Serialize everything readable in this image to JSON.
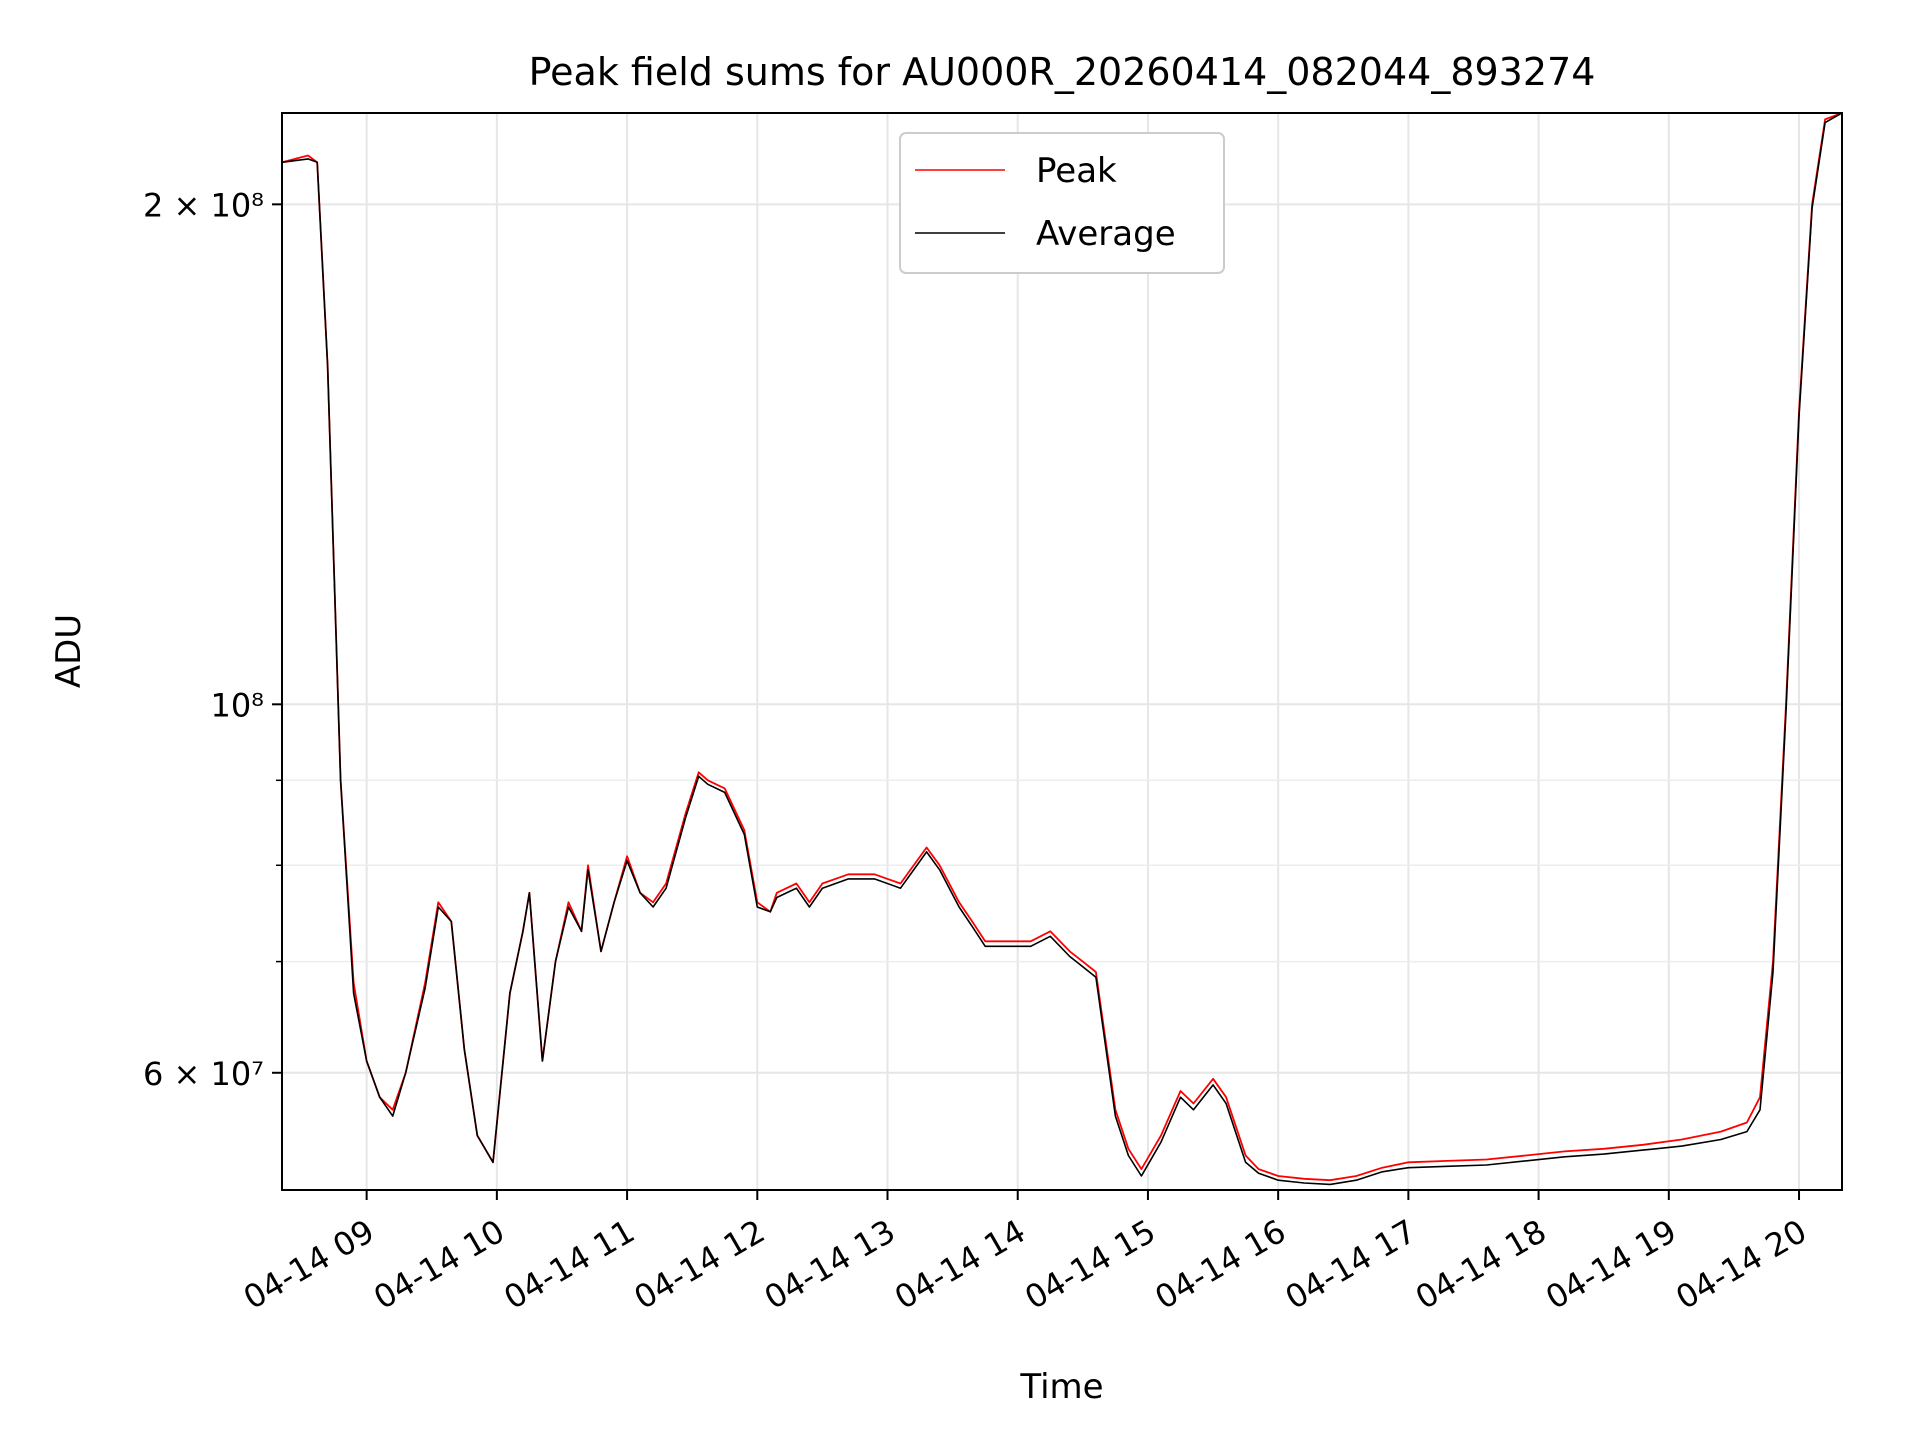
{
  "chart_data": {
    "type": "line",
    "title": "Peak field sums for AU000R_20260414_082044_893274",
    "xlabel": "Time",
    "ylabel": "ADU",
    "x_unit": "hour of 2026-04-14",
    "xlim": [
      8.35,
      20.33
    ],
    "ylim": [
      51000000,
      227000000
    ],
    "yscale": "log",
    "grid": true,
    "legend_position": "top-center",
    "x_tick_values": [
      9,
      10,
      11,
      12,
      13,
      14,
      15,
      16,
      17,
      18,
      19,
      20
    ],
    "x_tick_labels": [
      "04-14 09",
      "04-14 10",
      "04-14 11",
      "04-14 12",
      "04-14 13",
      "04-14 14",
      "04-14 15",
      "04-14 16",
      "04-14 17",
      "04-14 18",
      "04-14 19",
      "04-14 20"
    ],
    "y_major_ticks": [
      {
        "value": 60000000,
        "label": "6 × 10⁷"
      },
      {
        "value": 100000000,
        "label": "10⁸"
      },
      {
        "value": 200000000,
        "label": "2 × 10⁸"
      }
    ],
    "y_minor_ticks": [
      70000000,
      80000000,
      90000000
    ],
    "x": [
      8.35,
      8.55,
      8.62,
      8.7,
      8.8,
      8.9,
      9.0,
      9.1,
      9.2,
      9.3,
      9.45,
      9.55,
      9.65,
      9.75,
      9.85,
      9.97,
      10.1,
      10.2,
      10.25,
      10.35,
      10.45,
      10.55,
      10.65,
      10.7,
      10.8,
      10.9,
      11.0,
      11.1,
      11.2,
      11.3,
      11.45,
      11.55,
      11.62,
      11.75,
      11.9,
      12.0,
      12.1,
      12.15,
      12.3,
      12.4,
      12.5,
      12.7,
      12.9,
      13.1,
      13.3,
      13.4,
      13.55,
      13.65,
      13.75,
      13.95,
      14.1,
      14.25,
      14.4,
      14.5,
      14.6,
      14.75,
      14.85,
      14.95,
      15.1,
      15.25,
      15.35,
      15.5,
      15.6,
      15.75,
      15.85,
      16.0,
      16.2,
      16.4,
      16.6,
      16.8,
      17.0,
      17.3,
      17.6,
      17.9,
      18.2,
      18.5,
      18.8,
      19.1,
      19.4,
      19.6,
      19.7,
      19.8,
      19.9,
      20.0,
      20.1,
      20.2,
      20.33
    ],
    "series": [
      {
        "name": "Peak",
        "color": "#ff0000",
        "values": [
          212000000,
          214000000,
          212000000,
          160000000,
          90000000,
          68000000,
          61000000,
          58000000,
          57000000,
          60000000,
          68000000,
          76000000,
          74000000,
          62000000,
          55000000,
          53000000,
          67000000,
          73000000,
          77000000,
          61000000,
          70000000,
          76000000,
          73000000,
          80000000,
          71000000,
          76000000,
          81000000,
          77000000,
          76000000,
          78000000,
          86000000,
          91000000,
          90000000,
          89000000,
          84000000,
          76000000,
          75000000,
          77000000,
          78000000,
          76000000,
          78000000,
          79000000,
          79000000,
          78000000,
          82000000,
          80000000,
          76000000,
          74000000,
          72000000,
          72000000,
          72000000,
          73000000,
          71000000,
          70000000,
          69000000,
          57000000,
          54000000,
          52500000,
          55000000,
          58500000,
          57500000,
          59500000,
          58000000,
          53500000,
          52500000,
          52000000,
          51800000,
          51700000,
          52000000,
          52600000,
          53000000,
          53100000,
          53200000,
          53500000,
          53800000,
          54000000,
          54300000,
          54700000,
          55300000,
          56000000,
          58000000,
          70000000,
          100000000,
          150000000,
          200000000,
          225000000,
          227000000
        ]
      },
      {
        "name": "Average",
        "color": "#000000",
        "values": [
          212000000,
          213000000,
          212000000,
          160000000,
          90000000,
          67000000,
          61000000,
          58000000,
          56500000,
          60000000,
          67500000,
          75500000,
          74000000,
          62000000,
          55000000,
          53000000,
          67000000,
          73000000,
          77000000,
          61000000,
          70000000,
          75500000,
          73000000,
          79500000,
          71000000,
          76000000,
          80500000,
          77000000,
          75500000,
          77500000,
          85500000,
          90500000,
          89500000,
          88500000,
          83500000,
          75500000,
          75000000,
          76500000,
          77500000,
          75500000,
          77500000,
          78500000,
          78500000,
          77500000,
          81500000,
          79500000,
          75500000,
          73500000,
          71500000,
          71500000,
          71500000,
          72500000,
          70500000,
          69500000,
          68500000,
          56500000,
          53500000,
          52000000,
          54500000,
          58000000,
          57000000,
          59000000,
          57500000,
          53000000,
          52200000,
          51700000,
          51500000,
          51400000,
          51700000,
          52300000,
          52600000,
          52700000,
          52800000,
          53100000,
          53400000,
          53600000,
          53900000,
          54200000,
          54700000,
          55300000,
          57000000,
          69000000,
          99000000,
          149000000,
          199000000,
          224000000,
          227000000
        ]
      }
    ]
  }
}
